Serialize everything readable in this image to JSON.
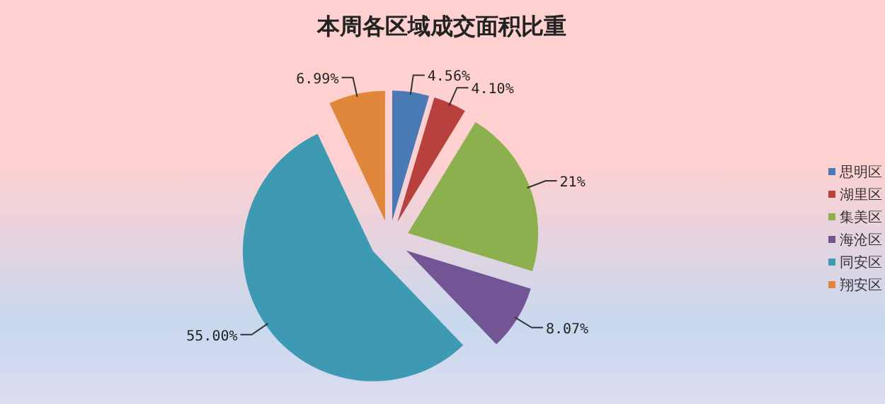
{
  "chart_data": {
    "type": "pie",
    "title": "本周各区域成交面积比重",
    "categories": [
      "思明区",
      "湖里区",
      "集美区",
      "海沧区",
      "同安区",
      "翔安区"
    ],
    "values": [
      4.56,
      4.1,
      21,
      8.07,
      55.0,
      6.99
    ],
    "value_labels": [
      "4.56%",
      "4.10%",
      "21%",
      "8.07%",
      "55.00%",
      "6.99%"
    ],
    "colors": [
      "#4a7ab5",
      "#b8403d",
      "#8db04e",
      "#735596",
      "#3e9ab2",
      "#e0863a"
    ],
    "legend": "right"
  }
}
